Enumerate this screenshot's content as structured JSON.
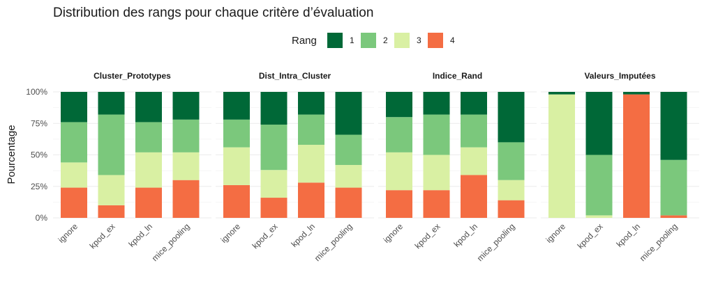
{
  "chart_data": {
    "type": "bar",
    "stacked": true,
    "title": "Distribution des rangs pour chaque critère d’évaluation",
    "ylabel": "Pourcentage",
    "xlabel": "",
    "ylim": [
      0,
      100
    ],
    "yticks": [
      0,
      25,
      50,
      75,
      100
    ],
    "ytick_labels": [
      "0%",
      "25%",
      "50%",
      "75%",
      "100%"
    ],
    "grid": true,
    "legend": {
      "title": "Rang",
      "position": "top",
      "entries": [
        {
          "label": "1",
          "color": "#006837"
        },
        {
          "label": "2",
          "color": "#7bc87c"
        },
        {
          "label": "3",
          "color": "#d9f0a3"
        },
        {
          "label": "4",
          "color": "#f46d43"
        }
      ]
    },
    "categories": [
      "ignore",
      "kpod_ex",
      "kpod_ln",
      "mice_pooling"
    ],
    "facets": [
      {
        "name": "Cluster_Prototypes",
        "series": [
          {
            "name": "1",
            "values": [
              24,
              18,
              24,
              22
            ]
          },
          {
            "name": "2",
            "values": [
              32,
              48,
              24,
              26
            ]
          },
          {
            "name": "3",
            "values": [
              20,
              24,
              28,
              22
            ]
          },
          {
            "name": "4",
            "values": [
              24,
              10,
              24,
              30
            ]
          }
        ]
      },
      {
        "name": "Dist_Intra_Cluster",
        "series": [
          {
            "name": "1",
            "values": [
              22,
              26,
              18,
              34
            ]
          },
          {
            "name": "2",
            "values": [
              22,
              36,
              24,
              24
            ]
          },
          {
            "name": "3",
            "values": [
              30,
              22,
              30,
              18
            ]
          },
          {
            "name": "4",
            "values": [
              26,
              16,
              28,
              24
            ]
          }
        ]
      },
      {
        "name": "Indice_Rand",
        "series": [
          {
            "name": "1",
            "values": [
              20,
              18,
              18,
              40
            ]
          },
          {
            "name": "2",
            "values": [
              28,
              32,
              26,
              30
            ]
          },
          {
            "name": "3",
            "values": [
              30,
              28,
              22,
              16
            ]
          },
          {
            "name": "4",
            "values": [
              22,
              22,
              34,
              14
            ]
          }
        ]
      },
      {
        "name": "Valeurs_Imputées",
        "series": [
          {
            "name": "1",
            "values": [
              2,
              50,
              2,
              54
            ]
          },
          {
            "name": "2",
            "values": [
              0,
              48,
              0,
              44
            ]
          },
          {
            "name": "3",
            "values": [
              98,
              2,
              0,
              0
            ]
          },
          {
            "name": "4",
            "values": [
              0,
              0,
              98,
              2
            ]
          }
        ]
      }
    ]
  }
}
